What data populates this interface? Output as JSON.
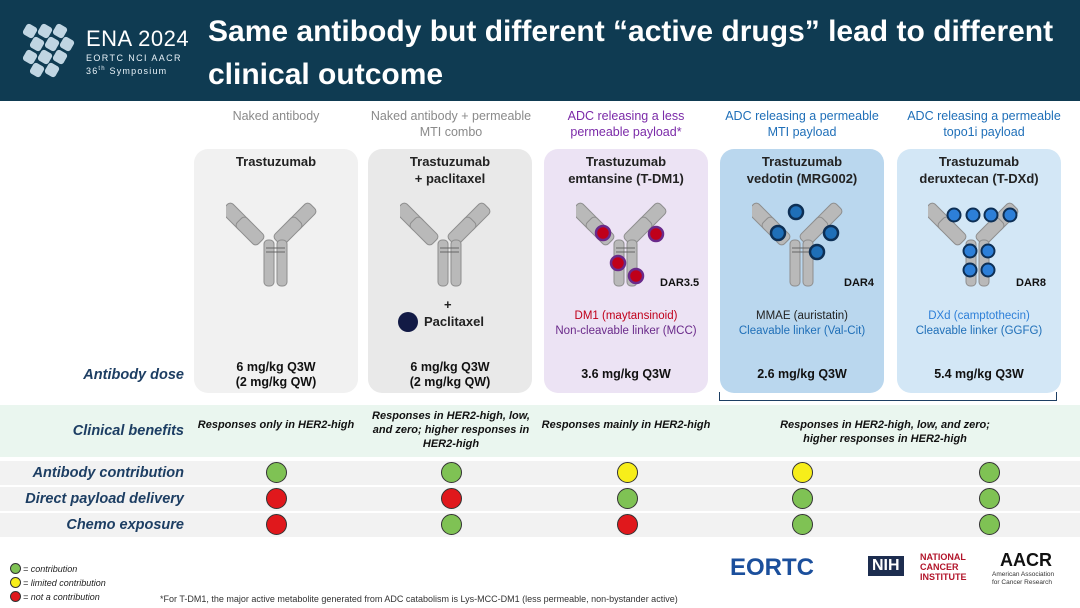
{
  "header": {
    "event": "ENA 2024",
    "orgs": "EORTC NCI AACR",
    "symposium_num": "36",
    "symposium_sup": "th",
    "symposium_rest": " Symposium",
    "title": "Same antibody but different “active drugs” lead to different clinical outcome"
  },
  "columns": [
    {
      "category": "Naked antibody",
      "name_line1": "Trastuzumab",
      "name_line2": "",
      "dar": "",
      "payload_lines": [],
      "dose_line1": "6 mg/kg Q3W",
      "dose_line2": "(2 mg/kg QW)",
      "card_color": "#f1f1f1",
      "category_color": "gray"
    },
    {
      "category": "Naked antibody + permeable MTI combo",
      "name_line1": "Trastuzumab",
      "name_line2": "+ paclitaxel",
      "plus": "+",
      "combo_drug": "Paclitaxel",
      "dar": "",
      "payload_lines": [],
      "dose_line1": "6 mg/kg Q3W",
      "dose_line2": "(2 mg/kg QW)",
      "card_color": "#e9e9e9",
      "category_color": "gray"
    },
    {
      "category": "ADC releasing a less permeable payload*",
      "name_line1": "Trastuzumab",
      "name_line2": "emtansine (T-DM1)",
      "dar": "DAR3.5",
      "payload_line1": "DM1 (maytansinoid)",
      "payload_line2": "Non-cleavable linker (MCC)",
      "dose_line1": "3.6 mg/kg Q3W",
      "dose_line2": "",
      "card_color": "#ece3f4",
      "category_color": "purple"
    },
    {
      "category": "ADC releasing a permeable MTI payload",
      "name_line1": "Trastuzumab",
      "name_line2": "vedotin (MRG002)",
      "dar": "DAR4",
      "payload_line1": "MMAE (auristatin)",
      "payload_line2": "Cleavable linker  (Val-Cit)",
      "dose_line1": "2.6 mg/kg Q3W",
      "dose_line2": "",
      "card_color": "#bad7ee",
      "category_color": "blue"
    },
    {
      "category": "ADC releasing a permeable topo1i payload",
      "name_line1": "Trastuzumab",
      "name_line2": "deruxtecan (T-DXd)",
      "dar": "DAR8",
      "payload_line1": "DXd (camptothecin)",
      "payload_line2": "Cleavable linker (GGFG)",
      "dose_line1": "5.4 mg/kg Q3W",
      "dose_line2": "",
      "card_color": "#d3e7f6",
      "category_color": "blue"
    }
  ],
  "rows": {
    "dose_label": "Antibody dose",
    "benefits_label": "Clinical benefits",
    "contribution_label": "Antibody contribution",
    "payload_label": "Direct payload delivery",
    "chemo_label": "Chemo exposure"
  },
  "benefits": [
    "Responses only in HER2-high",
    "Responses in HER2-high, low, and zero; higher responses in HER2-high",
    "Responses mainly in HER2-high",
    "Responses in HER2-high, low, and zero; higher responses in HER2-high"
  ],
  "status_matrix": {
    "antibody_contribution": [
      "green",
      "green",
      "yellow",
      "yellow",
      "green"
    ],
    "direct_payload_delivery": [
      "red",
      "red",
      "green",
      "green",
      "green"
    ],
    "chemo_exposure": [
      "red",
      "green",
      "red",
      "green",
      "green"
    ]
  },
  "legend": [
    {
      "color": "green",
      "label": "= contribution"
    },
    {
      "color": "yellow",
      "label": "= limited contribution"
    },
    {
      "color": "red",
      "label": "= not a contribution"
    }
  ],
  "footnote": "*For T-DM1, the major active metabolite generated from ADC catabolism is Lys-MCC-DM1 (less permeable, non-bystander active)",
  "partners": {
    "eortc": "EORTC",
    "nih": "NIH",
    "nci_line1": "NATIONAL",
    "nci_line2": "CANCER",
    "nci_line3": "INSTITUTE",
    "aacr": "AACR",
    "aacr_sub1": "American Association",
    "aacr_sub2": "for Cancer Research"
  },
  "colors": {
    "header_bg": "#0f3b52",
    "label_navy": "#1d3e63",
    "green": "#7fc254",
    "yellow": "#f7ee1a",
    "red": "#e0181c",
    "dm1_red": "#c0001a",
    "mmae_blue": "#1f6fb8",
    "dxd_blue": "#2d7fd8"
  }
}
